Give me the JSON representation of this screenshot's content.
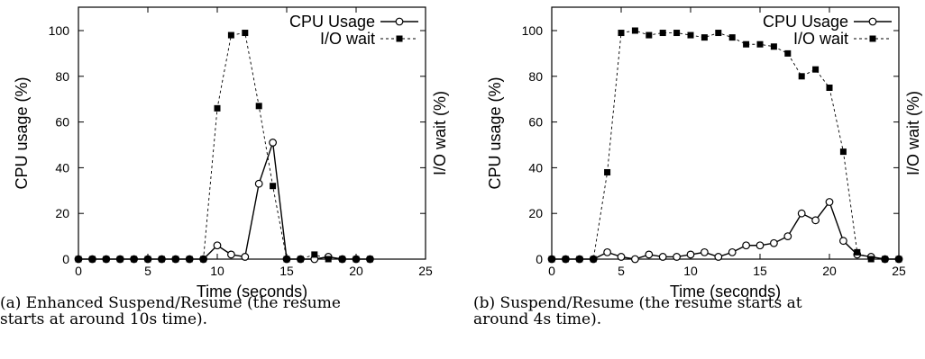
{
  "chart_data": [
    {
      "type": "line",
      "caption": "(a) Enhanced Suspend/Resume (the resume starts at around 10s time).",
      "caption_lines": [
        "(a) Enhanced Suspend/Resume (the resume",
        "starts at around 10s time)."
      ],
      "xlabel": "Time (seconds)",
      "ylabel_left": "CPU usage (%)",
      "ylabel_right": "I/O wait (%)",
      "xlim": [
        0,
        25
      ],
      "ylim": [
        0,
        100
      ],
      "xticks": [
        0,
        5,
        10,
        15,
        20,
        25
      ],
      "yticks": [
        0,
        20,
        40,
        60,
        80,
        100
      ],
      "legend_position": "top-right",
      "series": [
        {
          "name": "CPU Usage",
          "marker": "open-circle",
          "line": "solid",
          "x": [
            0,
            1,
            2,
            3,
            4,
            5,
            6,
            7,
            8,
            9,
            10,
            11,
            12,
            13,
            14,
            15,
            16,
            17,
            18,
            19,
            20,
            21
          ],
          "y": [
            0,
            0,
            0,
            0,
            0,
            0,
            0,
            0,
            0,
            0,
            6,
            2,
            1,
            33,
            51,
            0,
            0,
            0,
            1,
            0,
            0,
            0
          ]
        },
        {
          "name": "I/O wait",
          "marker": "filled-square",
          "line": "dashed",
          "x": [
            0,
            1,
            2,
            3,
            4,
            5,
            6,
            7,
            8,
            9,
            10,
            11,
            12,
            13,
            14,
            15,
            16,
            17,
            18,
            19,
            20,
            21
          ],
          "y": [
            0,
            0,
            0,
            0,
            0,
            0,
            0,
            0,
            0,
            0,
            66,
            98,
            99,
            67,
            32,
            0,
            0,
            2,
            0,
            0,
            0,
            0
          ]
        }
      ]
    },
    {
      "type": "line",
      "caption": "(b) Suspend/Resume (the resume starts at around 4s time).",
      "caption_lines": [
        "(b) Suspend/Resume (the resume starts at",
        "around 4s time)."
      ],
      "xlabel": "Time (seconds)",
      "ylabel_left": "CPU usage (%)",
      "ylabel_right": "I/O wait (%)",
      "xlim": [
        0,
        25
      ],
      "ylim": [
        0,
        100
      ],
      "xticks": [
        0,
        5,
        10,
        15,
        20,
        25
      ],
      "yticks": [
        0,
        20,
        40,
        60,
        80,
        100
      ],
      "legend_position": "top-right",
      "series": [
        {
          "name": "CPU Usage",
          "marker": "open-circle",
          "line": "solid",
          "x": [
            0,
            1,
            2,
            3,
            4,
            5,
            6,
            7,
            8,
            9,
            10,
            11,
            12,
            13,
            14,
            15,
            16,
            17,
            18,
            19,
            20,
            21,
            22,
            23,
            24,
            25
          ],
          "y": [
            0,
            0,
            0,
            0,
            3,
            1,
            0,
            2,
            1,
            1,
            2,
            3,
            1,
            3,
            6,
            6,
            7,
            10,
            20,
            17,
            25,
            8,
            2,
            1,
            0,
            0
          ]
        },
        {
          "name": "I/O wait",
          "marker": "filled-square",
          "line": "dashed",
          "x": [
            0,
            1,
            2,
            3,
            4,
            5,
            6,
            7,
            8,
            9,
            10,
            11,
            12,
            13,
            14,
            15,
            16,
            17,
            18,
            19,
            20,
            21,
            22,
            23,
            24,
            25
          ],
          "y": [
            0,
            0,
            0,
            0,
            38,
            99,
            100,
            98,
            99,
            99,
            98,
            97,
            99,
            97,
            94,
            94,
            93,
            90,
            80,
            83,
            75,
            47,
            3,
            0,
            0,
            0
          ]
        }
      ]
    }
  ]
}
